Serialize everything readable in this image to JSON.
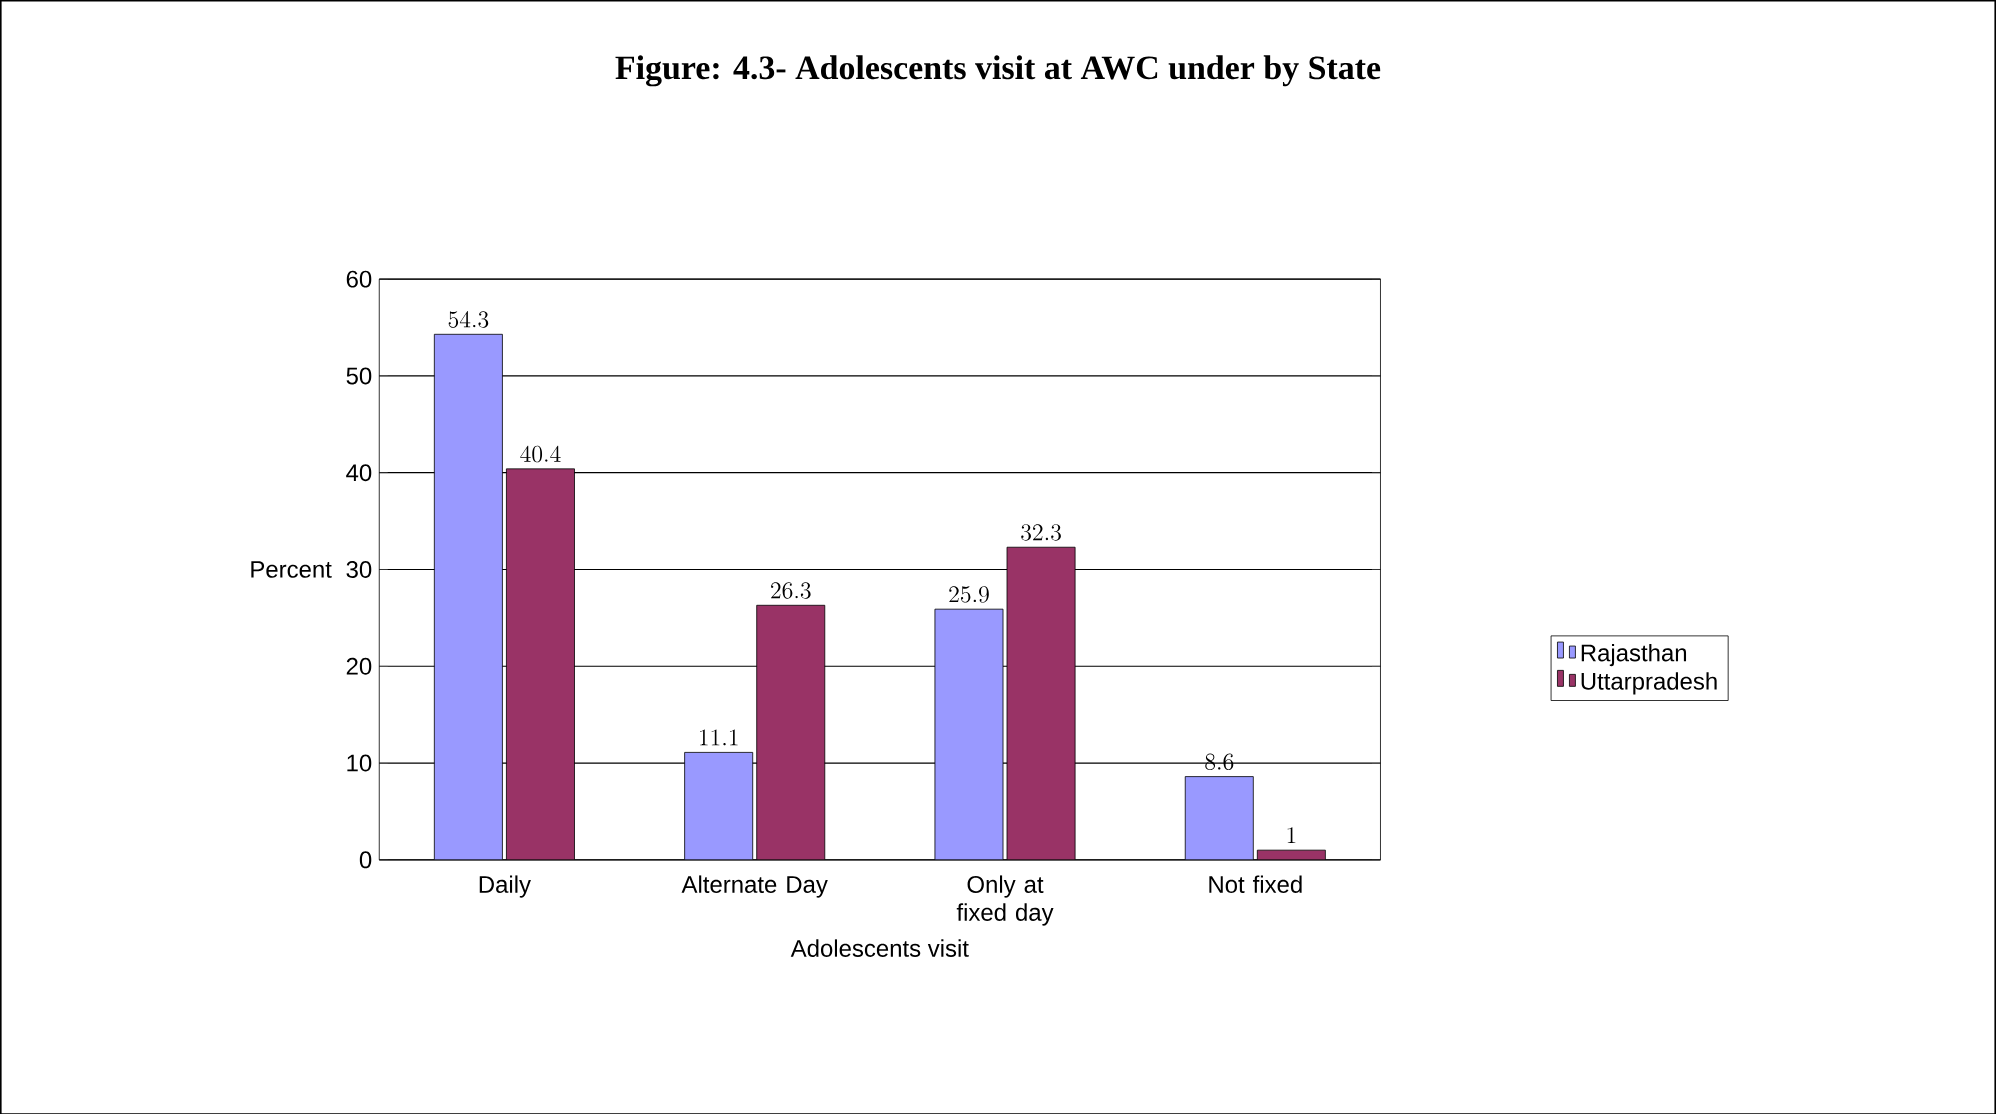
{
  "chart_data": {
    "type": "bar",
    "title": "Figure: 4.3- Adolescents visit at AWC under by State",
    "xlabel": "Adolescents visit",
    "ylabel": "Percent",
    "categories": [
      "Daily",
      "Alternate Day",
      "Only at fixed day",
      "Not fixed"
    ],
    "series": [
      {
        "name": "Rajasthan",
        "color": "#9999ff",
        "values": [
          54.3,
          11.1,
          25.9,
          8.6
        ]
      },
      {
        "name": "Uttarpradesh",
        "color": "#993366",
        "values": [
          40.4,
          26.3,
          32.3,
          1
        ]
      }
    ],
    "ylim": [
      0,
      60
    ],
    "yticks": [
      0,
      10,
      20,
      30,
      40,
      50,
      60
    ],
    "grid": "y",
    "legend": "right",
    "data_labels": true
  }
}
